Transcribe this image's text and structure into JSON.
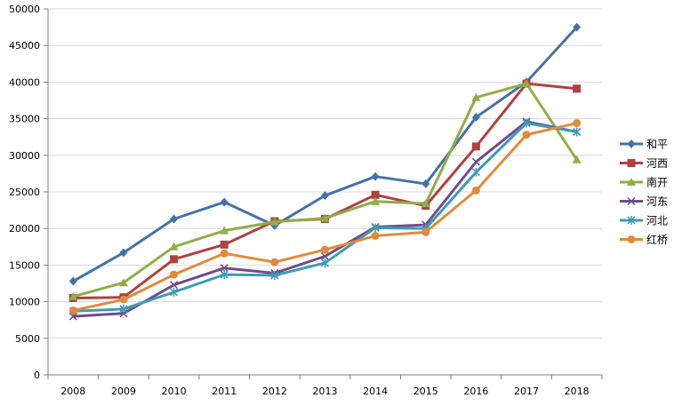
{
  "chart_data": {
    "type": "line",
    "title": "",
    "xlabel": "",
    "ylabel": "",
    "categories": [
      "2008",
      "2009",
      "2010",
      "2011",
      "2012",
      "2013",
      "2014",
      "2015",
      "2016",
      "2017",
      "2018"
    ],
    "ylim": [
      0,
      50000
    ],
    "yticks": [
      0,
      5000,
      10000,
      15000,
      20000,
      25000,
      30000,
      35000,
      40000,
      45000,
      50000
    ],
    "ytick_labels": [
      "0",
      "5000",
      "10000",
      "15000",
      "20000",
      "25000",
      "30000",
      "35000",
      "40000",
      "45000",
      "50000"
    ],
    "grid": true,
    "legend_position": "right",
    "series": [
      {
        "name": "和平",
        "color": "#4472A8",
        "marker": "diamond",
        "values": [
          12800,
          16700,
          21300,
          23600,
          20400,
          24500,
          27100,
          26100,
          35200,
          40000,
          47500
        ]
      },
      {
        "name": "河西",
        "color": "#B0413E",
        "marker": "square",
        "values": [
          10500,
          10600,
          15800,
          17800,
          21000,
          21300,
          24600,
          23100,
          31200,
          39800,
          39100
        ]
      },
      {
        "name": "南开",
        "color": "#8EAE48",
        "marker": "triangle",
        "values": [
          10700,
          12600,
          17500,
          19700,
          20900,
          21400,
          23700,
          23400,
          37900,
          39800,
          29400
        ]
      },
      {
        "name": "河东",
        "color": "#6E4C8E",
        "marker": "x",
        "values": [
          8000,
          8400,
          12300,
          14600,
          13900,
          16200,
          20200,
          20500,
          29100,
          34600,
          33200
        ]
      },
      {
        "name": "河北",
        "color": "#3E9BB4",
        "marker": "star",
        "values": [
          8700,
          9000,
          11300,
          13700,
          13600,
          15300,
          20100,
          20000,
          27700,
          34400,
          33200
        ]
      },
      {
        "name": "红桥",
        "color": "#E08B3A",
        "marker": "circle",
        "values": [
          8800,
          10300,
          13700,
          16600,
          15400,
          17100,
          19000,
          19500,
          25200,
          32800,
          34400
        ]
      }
    ]
  }
}
